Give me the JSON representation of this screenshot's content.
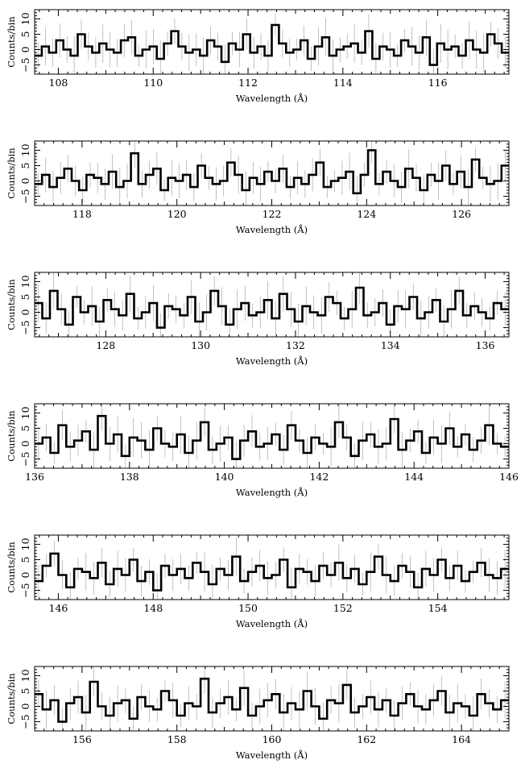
{
  "chart_data": [
    {
      "type": "line",
      "drawstyle": "steps",
      "xlabel": "Wavelength (Å)",
      "ylabel": "Counts/bin",
      "xlim": [
        107.5,
        117.5
      ],
      "ylim": [
        -8,
        13
      ],
      "xticks": [
        108,
        110,
        112,
        114,
        116
      ],
      "yticks": [
        -5,
        0,
        5,
        10
      ],
      "error_bars": true,
      "series": [
        {
          "values": [
            -2,
            1,
            -1,
            3,
            0,
            -2,
            5,
            1,
            -1,
            2,
            0,
            -1,
            3,
            4,
            -2,
            0,
            1,
            -3,
            2,
            6,
            1,
            -1,
            0,
            -2,
            3,
            1,
            -4,
            2,
            0,
            5,
            -1,
            1,
            -2,
            8,
            2,
            -1,
            0,
            3,
            -3,
            1,
            4,
            -2,
            0,
            1,
            2,
            -1,
            6,
            -3,
            1,
            0,
            -2,
            3,
            1,
            -1,
            4,
            -5,
            2,
            0,
            1,
            -2,
            3,
            0,
            -1,
            5,
            2,
            -1
          ]
        }
      ]
    },
    {
      "type": "line",
      "drawstyle": "steps",
      "xlabel": "Wavelength (Å)",
      "ylabel": "Counts/bin",
      "xlim": [
        117,
        127
      ],
      "ylim": [
        -8,
        13
      ],
      "xticks": [
        118,
        120,
        122,
        124,
        126
      ],
      "yticks": [
        -5,
        0,
        5,
        10
      ],
      "error_bars": true,
      "series": [
        {
          "values": [
            -1,
            2,
            -2,
            1,
            4,
            0,
            -3,
            2,
            1,
            -1,
            3,
            -2,
            0,
            9,
            -1,
            2,
            4,
            -3,
            1,
            0,
            2,
            -2,
            5,
            1,
            -1,
            0,
            6,
            2,
            -3,
            1,
            -1,
            3,
            0,
            4,
            -2,
            1,
            -1,
            2,
            6,
            -2,
            0,
            1,
            3,
            -4,
            2,
            10,
            -1,
            3,
            0,
            -2,
            4,
            1,
            -3,
            2,
            0,
            5,
            -1,
            3,
            -2,
            7,
            1,
            -1,
            0,
            5
          ]
        }
      ]
    },
    {
      "type": "line",
      "drawstyle": "steps",
      "xlabel": "Wavelength (Å)",
      "ylabel": "Counts/bin",
      "xlim": [
        126.5,
        136.5
      ],
      "ylim": [
        -8,
        13
      ],
      "xticks": [
        128,
        130,
        132,
        134,
        136
      ],
      "yticks": [
        -5,
        0,
        5,
        10
      ],
      "error_bars": true,
      "series": [
        {
          "values": [
            3,
            -2,
            7,
            1,
            -4,
            5,
            0,
            2,
            -3,
            4,
            1,
            -1,
            6,
            -2,
            0,
            3,
            -5,
            2,
            1,
            -1,
            5,
            -3,
            0,
            7,
            2,
            -4,
            1,
            3,
            -1,
            0,
            4,
            -2,
            6,
            1,
            -3,
            2,
            0,
            -1,
            5,
            3,
            -2,
            1,
            8,
            -1,
            0,
            3,
            -4,
            2,
            1,
            5,
            -2,
            0,
            4,
            -3,
            1,
            7,
            -1,
            2,
            0,
            -2,
            3,
            1
          ]
        }
      ]
    },
    {
      "type": "line",
      "drawstyle": "steps",
      "xlabel": "Wavelength (Å)",
      "ylabel": "Counts/bin",
      "xlim": [
        136,
        146
      ],
      "ylim": [
        -8,
        13
      ],
      "xticks": [
        136,
        138,
        140,
        142,
        144,
        146
      ],
      "yticks": [
        -5,
        0,
        5,
        10
      ],
      "error_bars": true,
      "series": [
        {
          "values": [
            0,
            2,
            -3,
            6,
            -1,
            1,
            4,
            -2,
            9,
            0,
            3,
            -4,
            2,
            1,
            -2,
            5,
            0,
            -1,
            3,
            -3,
            1,
            7,
            -2,
            0,
            2,
            -5,
            1,
            4,
            -1,
            0,
            3,
            -2,
            6,
            1,
            -3,
            2,
            0,
            -1,
            7,
            2,
            -4,
            1,
            3,
            -1,
            0,
            8,
            -2,
            1,
            4,
            -3,
            2,
            0,
            5,
            -1,
            3,
            -2,
            1,
            6,
            0,
            -1
          ]
        }
      ]
    },
    {
      "type": "line",
      "drawstyle": "steps",
      "xlabel": "Wavelength (Å)",
      "ylabel": "Counts/bin",
      "xlim": [
        145.5,
        155.5
      ],
      "ylim": [
        -8,
        13
      ],
      "xticks": [
        146,
        148,
        150,
        152,
        154
      ],
      "yticks": [
        -5,
        0,
        5,
        10
      ],
      "error_bars": true,
      "series": [
        {
          "values": [
            -2,
            3,
            7,
            0,
            -4,
            2,
            1,
            -1,
            4,
            -3,
            2,
            0,
            5,
            -2,
            1,
            -5,
            3,
            0,
            2,
            -1,
            4,
            1,
            -3,
            2,
            0,
            6,
            -2,
            1,
            3,
            -1,
            0,
            5,
            -4,
            2,
            1,
            -2,
            3,
            0,
            4,
            -1,
            2,
            -3,
            1,
            6,
            0,
            -2,
            3,
            1,
            -4,
            2,
            0,
            5,
            -1,
            3,
            -2,
            1,
            4,
            0,
            -1,
            2
          ]
        }
      ]
    },
    {
      "type": "line",
      "drawstyle": "steps",
      "xlabel": "Wavelength (Å)",
      "ylabel": "Counts/bin",
      "xlim": [
        155,
        165
      ],
      "ylim": [
        -8,
        13
      ],
      "xticks": [
        156,
        158,
        160,
        162,
        164
      ],
      "yticks": [
        -5,
        0,
        5,
        10
      ],
      "error_bars": true,
      "series": [
        {
          "values": [
            4,
            -1,
            2,
            -5,
            1,
            3,
            -2,
            8,
            0,
            -3,
            1,
            2,
            -4,
            3,
            0,
            -1,
            5,
            2,
            -3,
            1,
            0,
            9,
            -2,
            1,
            3,
            -1,
            6,
            -3,
            0,
            2,
            4,
            -2,
            1,
            -1,
            5,
            0,
            -4,
            2,
            1,
            7,
            -2,
            0,
            3,
            -1,
            2,
            -3,
            1,
            4,
            0,
            -1,
            2,
            5,
            -2,
            1,
            0,
            -3,
            4,
            1,
            -1,
            2
          ]
        }
      ]
    }
  ]
}
